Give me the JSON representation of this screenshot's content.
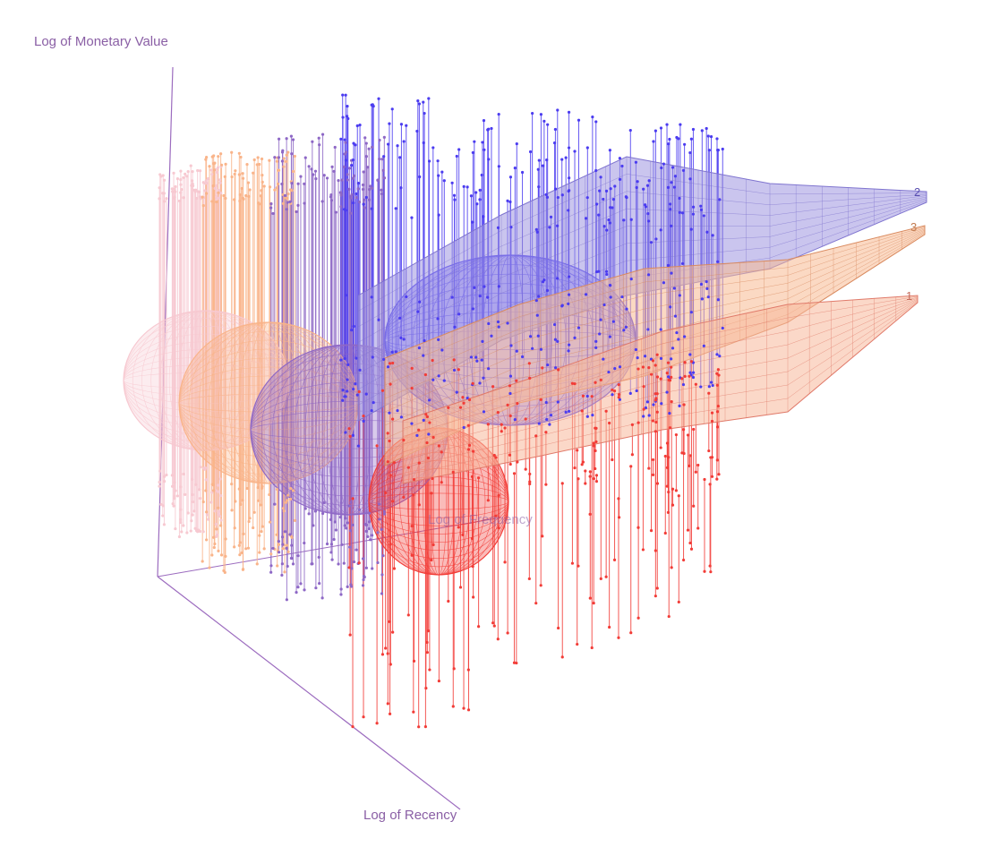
{
  "chart_data": {
    "type": "scatter3d",
    "axes": {
      "z_label": "Log of Monetary Value",
      "x_label": "Log of Recency",
      "y_label": "Log of Frequency"
    },
    "grid": false,
    "legend": "none",
    "series": [
      {
        "name": "",
        "color": "#f7c9d1",
        "kind": "points-with-drop-lines"
      },
      {
        "name": "",
        "color": "#f9b48a",
        "kind": "points-with-drop-lines"
      },
      {
        "name": "",
        "color": "#8e68c6",
        "kind": "points-with-drop-lines"
      },
      {
        "name": "",
        "color": "#4b3cf0",
        "kind": "points-with-drop-lines"
      },
      {
        "name": "",
        "color": "#f23c37",
        "kind": "points-with-drop-lines"
      }
    ],
    "ellipsoids": [
      {
        "color": "#f7c9d1"
      },
      {
        "color": "#f9b48a"
      },
      {
        "color": "#8e68c6"
      },
      {
        "color": "#4b3cf0"
      },
      {
        "color": "#f23c37"
      }
    ],
    "surfaces": [
      {
        "label": "2",
        "fill": "#9f96e0",
        "line": "#7f74cf"
      },
      {
        "label": "3",
        "fill": "#f7b991",
        "line": "#d98a5f"
      },
      {
        "label": "1",
        "fill": "#f8b89a",
        "line": "#e07a6a"
      }
    ],
    "axis_color": "#9c6cbf"
  }
}
